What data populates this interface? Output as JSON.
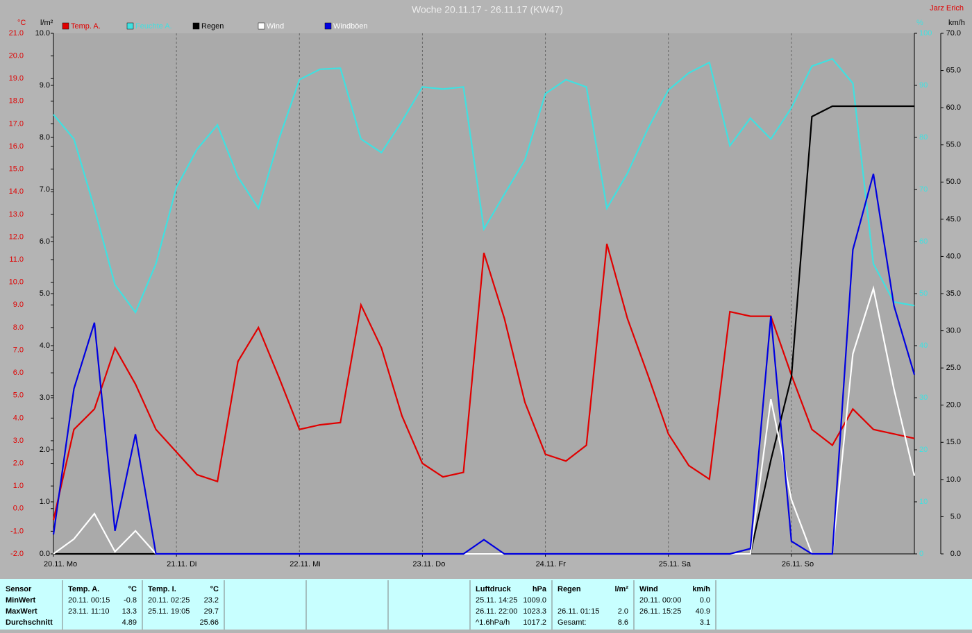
{
  "chart_data": {
    "type": "line",
    "title": "Woche 20.11.17 - 26.11.17 (KW47)",
    "subtitle": "Jarz Erich",
    "y_label": "°C",
    "y2_label": "l/m²",
    "y3_label": "%",
    "y4_label": "km/h",
    "xlim": [
      0,
      168
    ],
    "xticks": [
      {
        "value": 0,
        "label": "20.11. Mo"
      },
      {
        "value": 24,
        "label": "21.11. Di"
      },
      {
        "value": 48,
        "label": "22.11. Mi"
      },
      {
        "value": 72,
        "label": "23.11. Do"
      },
      {
        "value": 96,
        "label": "24.11. Fr"
      },
      {
        "value": 120,
        "label": "25.11. Sa"
      },
      {
        "value": 144,
        "label": "26.11. So"
      }
    ],
    "ylim": [
      -2,
      21
    ],
    "yticks": [
      {
        "value": -2,
        "label": "-2.0"
      },
      {
        "value": -1,
        "label": "-1.0"
      },
      {
        "value": 0,
        "label": "0.0"
      },
      {
        "value": 1,
        "label": "1.0"
      },
      {
        "value": 2,
        "label": "2.0"
      },
      {
        "value": 3,
        "label": "3.0"
      },
      {
        "value": 4,
        "label": "4.0"
      },
      {
        "value": 5,
        "label": "5.0"
      },
      {
        "value": 6,
        "label": "6.0"
      },
      {
        "value": 7,
        "label": "7.0"
      },
      {
        "value": 8,
        "label": "8.0"
      },
      {
        "value": 9,
        "label": "9.0"
      },
      {
        "value": 10,
        "label": "10.0"
      },
      {
        "value": 11,
        "label": "11.0"
      },
      {
        "value": 12,
        "label": "12.0"
      },
      {
        "value": 13,
        "label": "13.0"
      },
      {
        "value": 14,
        "label": "14.0"
      },
      {
        "value": 15,
        "label": "15.0"
      },
      {
        "value": 16,
        "label": "16.0"
      },
      {
        "value": 17,
        "label": "17.0"
      },
      {
        "value": 18,
        "label": "18.0"
      },
      {
        "value": 19,
        "label": "19.0"
      },
      {
        "value": 20,
        "label": "20.0"
      },
      {
        "value": 21,
        "label": "21.0"
      }
    ],
    "y2lim": [
      0,
      10
    ],
    "y2ticks": [
      {
        "value": 0,
        "label": "0.0"
      },
      {
        "value": 1,
        "label": "1.0"
      },
      {
        "value": 2,
        "label": "2.0"
      },
      {
        "value": 3,
        "label": "3.0"
      },
      {
        "value": 4,
        "label": "4.0"
      },
      {
        "value": 5,
        "label": "5.0"
      },
      {
        "value": 6,
        "label": "6.0"
      },
      {
        "value": 7,
        "label": "7.0"
      },
      {
        "value": 8,
        "label": "8.0"
      },
      {
        "value": 9,
        "label": "9.0"
      },
      {
        "value": 10,
        "label": "10.0"
      }
    ],
    "y3lim": [
      0,
      100
    ],
    "y3ticks": [
      0,
      10,
      20,
      30,
      40,
      50,
      60,
      70,
      80,
      90,
      100
    ],
    "y4lim": [
      0,
      70
    ],
    "y4ticks": [
      {
        "value": 0,
        "label": "0.0"
      },
      {
        "value": 5,
        "label": "5.0"
      },
      {
        "value": 10,
        "label": "10.0"
      },
      {
        "value": 15,
        "label": "15.0"
      },
      {
        "value": 20,
        "label": "20.0"
      },
      {
        "value": 25,
        "label": "25.0"
      },
      {
        "value": 30,
        "label": "30.0"
      },
      {
        "value": 35,
        "label": "35.0"
      },
      {
        "value": 40,
        "label": "40.0"
      },
      {
        "value": 45,
        "label": "45.0"
      },
      {
        "value": 50,
        "label": "50.0"
      },
      {
        "value": 55,
        "label": "55.0"
      },
      {
        "value": 60,
        "label": "60.0"
      },
      {
        "value": 65,
        "label": "65.0"
      },
      {
        "value": 70,
        "label": "70.0"
      }
    ],
    "grid": true,
    "x": [
      0,
      4,
      8,
      12,
      16,
      20,
      24,
      28,
      32,
      36,
      40,
      44,
      48,
      52,
      56,
      60,
      64,
      68,
      72,
      76,
      80,
      84,
      88,
      92,
      96,
      100,
      104,
      108,
      112,
      116,
      120,
      124,
      128,
      132,
      136,
      140,
      144,
      148,
      152,
      156,
      160,
      164,
      168
    ],
    "series": [
      {
        "name": "Temp. A.",
        "color": "#e00000",
        "axis": "y",
        "values": [
          -0.5,
          3.5,
          4.4,
          7.1,
          5.5,
          3.5,
          2.5,
          1.5,
          1.2,
          6.5,
          8.0,
          5.8,
          3.5,
          3.7,
          3.8,
          9.0,
          7.1,
          4.1,
          2.0,
          1.4,
          1.6,
          11.3,
          8.4,
          4.7,
          2.4,
          2.1,
          2.8,
          11.7,
          8.4,
          5.9,
          3.3,
          1.9,
          1.3,
          8.7,
          8.5,
          8.5,
          5.9,
          3.5,
          2.8,
          4.4,
          3.5,
          3.3,
          3.1
        ]
      },
      {
        "name": "Feuchte A.",
        "color": "#40e0e0",
        "axis": "y3",
        "values": [
          84.4,
          79.7,
          66.4,
          51.7,
          46.4,
          55.7,
          70.4,
          77.7,
          82.4,
          72.4,
          66.4,
          79.7,
          91.1,
          93.1,
          93.3,
          79.7,
          77.1,
          83.1,
          89.7,
          89.3,
          89.7,
          62.4,
          69.1,
          75.7,
          88.4,
          91.1,
          89.7,
          66.4,
          73.1,
          81.7,
          89.1,
          92.4,
          94.4,
          78.4,
          83.7,
          79.7,
          85.7,
          93.7,
          95.1,
          90.4,
          55.7,
          48.4,
          47.7
        ]
      },
      {
        "name": "Regen",
        "color": "#000000",
        "axis": "y2",
        "values": [
          0,
          0,
          0,
          0,
          0,
          0,
          0,
          0,
          0,
          0,
          0,
          0,
          0,
          0,
          0,
          0,
          0,
          0,
          0,
          0,
          0,
          0,
          0,
          0,
          0,
          0,
          0,
          0,
          0,
          0,
          0,
          0,
          0,
          0,
          0,
          1.8,
          3.4,
          8.4,
          8.6,
          8.6,
          8.6,
          8.6,
          8.6
        ]
      },
      {
        "name": "Wind",
        "color": "#ffffff",
        "axis": "y4",
        "values": [
          0,
          2.0,
          5.4,
          0.3,
          3.1,
          0,
          0,
          0,
          0,
          0,
          0,
          0,
          0,
          0,
          0,
          0,
          0,
          0,
          0,
          0,
          0,
          0,
          0,
          0,
          0,
          0,
          0,
          0,
          0,
          0,
          0,
          0,
          0,
          0,
          0,
          20.8,
          7.3,
          0,
          0,
          26.9,
          35.7,
          22.2,
          10.5
        ]
      },
      {
        "name": "Windböen",
        "color": "#0000e0",
        "axis": "y4",
        "values": [
          2.6,
          22.2,
          31.1,
          3.1,
          16.1,
          0,
          0,
          0,
          0,
          0,
          0,
          0,
          0,
          0,
          0,
          0,
          0,
          0,
          0,
          0,
          0,
          1.9,
          0,
          0,
          0,
          0,
          0,
          0,
          0,
          0,
          0,
          0,
          0,
          0,
          0.7,
          32.0,
          1.7,
          0,
          0,
          40.9,
          51.1,
          33.4,
          24.1
        ]
      }
    ]
  },
  "table": {
    "columns": [
      {
        "head": "Sensor",
        "rows": [
          "MinWert",
          "MaxWert",
          "Durchschnitt"
        ]
      },
      {
        "head": "Temp. A.",
        "unit": "°C",
        "rows": [
          [
            "20.11. 00:15",
            "-0.8"
          ],
          [
            "23.11. 11:10",
            "13.3"
          ],
          [
            null,
            "4.89"
          ]
        ]
      },
      {
        "head": "Temp. I.",
        "unit": "°C",
        "rows": [
          [
            "20.11. 02:25",
            "23.2"
          ],
          [
            "25.11. 19:05",
            "29.7"
          ],
          [
            null,
            "25.66"
          ]
        ]
      },
      {
        "head": "Luftdruck",
        "unit": "hPa",
        "rows": [
          [
            "25.11. 14:25",
            "1009.0"
          ],
          [
            "26.11. 22:00",
            "1023.3"
          ],
          [
            "^1.6hPa/h",
            "1017.2"
          ]
        ]
      },
      {
        "head": "Regen",
        "unit": "l/m²",
        "rows": [
          null,
          [
            "26.11. 01:15",
            "2.0"
          ],
          [
            "Gesamt:",
            "8.6"
          ]
        ]
      },
      {
        "head": "Wind",
        "unit": "km/h",
        "rows": [
          [
            "20.11. 00:00",
            "0.0"
          ],
          [
            "26.11. 15:25",
            "40.9"
          ],
          [
            null,
            "3.1"
          ]
        ]
      }
    ]
  }
}
